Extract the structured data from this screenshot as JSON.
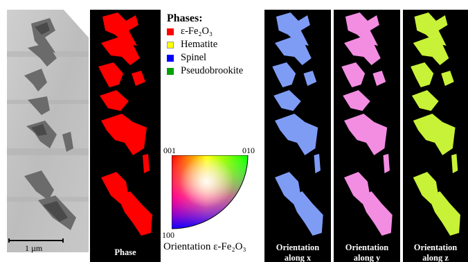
{
  "scale_bar": {
    "label": "1 µm"
  },
  "panels": {
    "phase": {
      "label": "Phase",
      "color": "#ff0000"
    },
    "orientation_x": {
      "label_line1": "Orientation",
      "label_line2": "along x",
      "color": "#7f9cf5"
    },
    "orientation_y": {
      "label_line1": "Orientation",
      "label_line2": "along y",
      "color": "#f28de2"
    },
    "orientation_z": {
      "label_line1": "Orientation",
      "label_line2": "along z",
      "color": "#c8f237"
    }
  },
  "legend": {
    "title": "Phases:",
    "items": [
      {
        "label": "ε-Fe₂O₃",
        "color": "#ff0000"
      },
      {
        "label": "Hematite",
        "color": "#ffff00"
      },
      {
        "label": "Spinel",
        "color": "#0000ff"
      },
      {
        "label": "Pseudobrookite",
        "color": "#00a000"
      }
    ]
  },
  "ipf": {
    "corner_001": "001",
    "corner_010": "010",
    "corner_100": "100",
    "caption": "Orientation ε-Fe₂O₃"
  }
}
